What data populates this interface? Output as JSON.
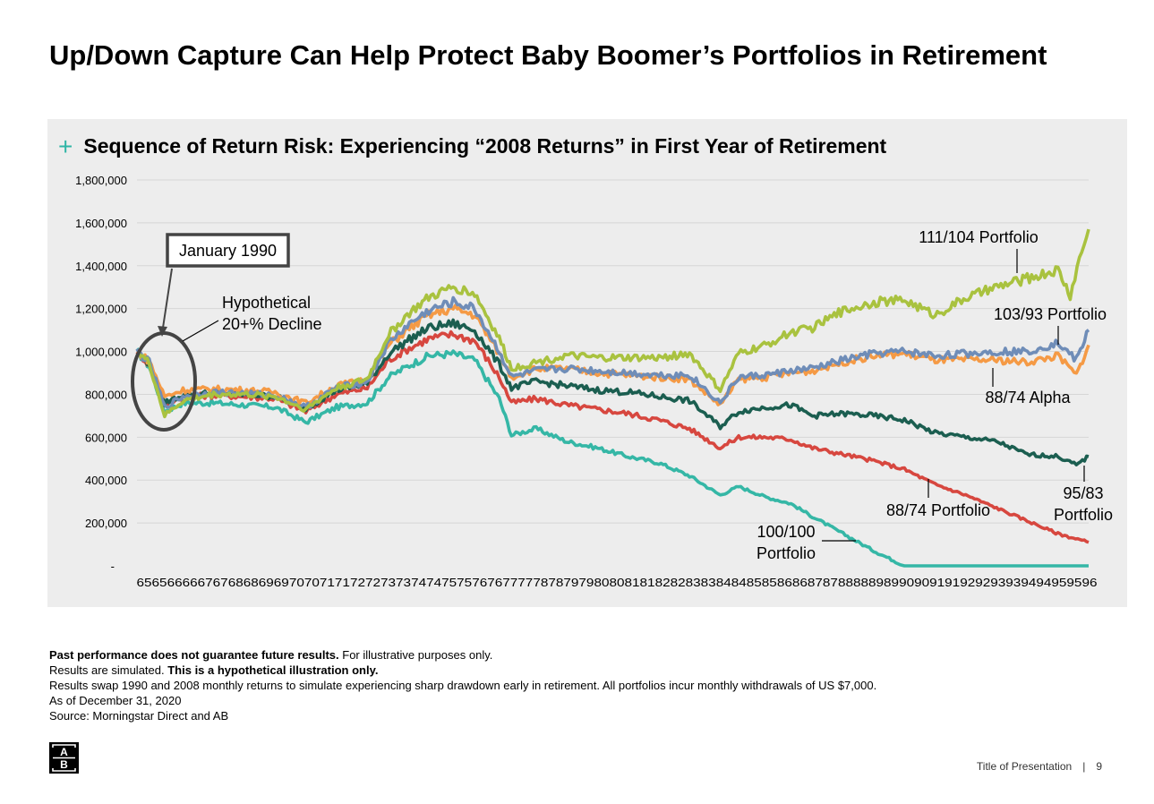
{
  "page": {
    "title": "Up/Down Capture Can Help Protect Baby Boomer’s Portfolios in Retirement",
    "footer_title": "Title of Presentation",
    "footer_separator": "|",
    "page_number": "9"
  },
  "footnotes": [
    {
      "bold": "Past performance does not guarantee future results.",
      "text": " For illustrative purposes only."
    },
    {
      "text": "Results are simulated. ",
      "bold": "This is a hypothetical illustration only."
    },
    {
      "text": "Results swap 1990 and 2008 monthly returns to simulate experiencing sharp drawdown early in retirement. All portfolios incur monthly withdrawals of US $7,000."
    },
    {
      "text": "As of December 31, 2020"
    },
    {
      "text": "Source: Morningstar Direct and AB"
    }
  ],
  "logo": {
    "letters": [
      "A",
      "B"
    ],
    "icon": "ab-logo-icon"
  },
  "colors": {
    "panel_background": "#ededed",
    "accent_plus": "#2fb5a6",
    "gridline": "#d6d6d6"
  },
  "chart_data": {
    "type": "line",
    "title": "Sequence of Return Risk: Experiencing “2008 Returns” in First Year of Retirement",
    "title_marker": "+",
    "xlabel": "",
    "ylabel": "",
    "ylim": [
      0,
      1800000
    ],
    "xlim": [
      1965,
      1996
    ],
    "y_ticks": [
      {
        "value": 0,
        "label": "-"
      },
      {
        "value": 200000,
        "label": "200,000"
      },
      {
        "value": 400000,
        "label": "400,000"
      },
      {
        "value": 600000,
        "label": "600,000"
      },
      {
        "value": 800000,
        "label": "800,000"
      },
      {
        "value": 1000000,
        "label": "1,000,000"
      },
      {
        "value": 1200000,
        "label": "1,200,000"
      },
      {
        "value": 1400000,
        "label": "1,400,000"
      },
      {
        "value": 1600000,
        "label": "1,600,000"
      },
      {
        "value": 1800000,
        "label": "1,800,000"
      }
    ],
    "x_tick_labels_text": "6565666667676868696970707171727273737474757576767777787879798080818182828383848485858686878788888989909091919292939394949595 96",
    "x_tick_labels": [
      "65",
      "65",
      "66",
      "66",
      "67",
      "67",
      "68",
      "68",
      "69",
      "69",
      "70",
      "70",
      "71",
      "71",
      "72",
      "72",
      "73",
      "73",
      "74",
      "74",
      "75",
      "75",
      "76",
      "76",
      "77",
      "77",
      "78",
      "78",
      "79",
      "79",
      "80",
      "80",
      "81",
      "81",
      "82",
      "82",
      "83",
      "83",
      "84",
      "84",
      "85",
      "85",
      "86",
      "86",
      "87",
      "87",
      "88",
      "88",
      "89",
      "89",
      "90",
      "90",
      "91",
      "91",
      "92",
      "92",
      "93",
      "93",
      "94",
      "94",
      "95",
      "95",
      "96"
    ],
    "grid": true,
    "legend": "none",
    "series": [
      {
        "name": "100/100 Portfolio",
        "color": "#35b7a6",
        "x": [
          1965,
          1965.4,
          1965.9,
          1966.5,
          1967.5,
          1968.5,
          1969.5,
          1970.5,
          1971.5,
          1972.5,
          1973.2,
          1973.8,
          1974.5,
          1975.3,
          1976.0,
          1976.8,
          1977.2,
          1978.0,
          1979.0,
          1980.0,
          1981.0,
          1982.0,
          1983.0,
          1984.0,
          1984.6,
          1985.5,
          1986.3,
          1987.0,
          1988.0,
          1989.0,
          1990.0,
          1991.0,
          1992.0,
          1993.0,
          1994.0,
          1995.0,
          1996.0
        ],
        "values": [
          1000000,
          930000,
          720000,
          760000,
          760000,
          750000,
          740000,
          670000,
          740000,
          760000,
          880000,
          930000,
          980000,
          990000,
          960000,
          780000,
          610000,
          640000,
          580000,
          550000,
          510000,
          480000,
          420000,
          330000,
          370000,
          320000,
          290000,
          230000,
          150000,
          70000,
          0,
          0,
          0,
          0,
          0,
          0,
          0
        ]
      },
      {
        "name": "88/74 Portfolio",
        "color": "#d7473f",
        "x": [
          1965,
          1965.4,
          1965.9,
          1966.5,
          1967.5,
          1968.5,
          1969.5,
          1970.5,
          1971.5,
          1972.5,
          1973.2,
          1973.8,
          1974.5,
          1975.3,
          1976.0,
          1976.8,
          1977.2,
          1978.0,
          1979.0,
          1980.0,
          1981.0,
          1982.0,
          1983.0,
          1984.0,
          1984.6,
          1985.5,
          1986.3,
          1987.0,
          1988.0,
          1989.0,
          1990.0,
          1991.0,
          1992.0,
          1993.0,
          1994.0,
          1995.0,
          1996.0
        ],
        "values": [
          1000000,
          940000,
          750000,
          790000,
          795000,
          790000,
          780000,
          720000,
          800000,
          830000,
          960000,
          1010000,
          1060000,
          1080000,
          1050000,
          880000,
          760000,
          780000,
          750000,
          730000,
          710000,
          680000,
          640000,
          550000,
          600000,
          600000,
          590000,
          550000,
          520000,
          490000,
          450000,
          380000,
          330000,
          270000,
          210000,
          150000,
          110000
        ]
      },
      {
        "name": "95/83 Portfolio",
        "color": "#1b5e50",
        "x": [
          1965,
          1965.4,
          1965.9,
          1966.5,
          1967.5,
          1968.5,
          1969.5,
          1970.5,
          1971.5,
          1972.5,
          1973.2,
          1973.8,
          1974.5,
          1975.3,
          1976.0,
          1976.8,
          1977.2,
          1978.0,
          1979.0,
          1980.0,
          1981.0,
          1982.0,
          1983.0,
          1984.0,
          1984.6,
          1985.5,
          1986.3,
          1987.0,
          1988.0,
          1989.0,
          1990.0,
          1991.0,
          1992.0,
          1993.0,
          1994.0,
          1995.0,
          1995.6,
          1996.0
        ],
        "values": [
          1000000,
          945000,
          760000,
          800000,
          805000,
          800000,
          790000,
          735000,
          820000,
          850000,
          990000,
          1050000,
          1110000,
          1130000,
          1100000,
          940000,
          830000,
          860000,
          840000,
          820000,
          810000,
          790000,
          770000,
          650000,
          720000,
          740000,
          750000,
          700000,
          710000,
          700000,
          680000,
          620000,
          600000,
          580000,
          520000,
          510000,
          470000,
          510000
        ]
      },
      {
        "name": "88/74 Alpha",
        "color": "#f59a45",
        "x": [
          1965,
          1965.4,
          1965.9,
          1966.5,
          1967.5,
          1968.5,
          1969.5,
          1970.5,
          1971.5,
          1972.5,
          1973.2,
          1973.8,
          1974.5,
          1975.3,
          1976.0,
          1976.8,
          1977.2,
          1978.0,
          1979.0,
          1980.0,
          1981.0,
          1982.0,
          1983.0,
          1984.0,
          1984.6,
          1985.5,
          1986.3,
          1987.0,
          1988.0,
          1989.0,
          1990.0,
          1991.0,
          1992.0,
          1993.0,
          1994.0,
          1995.0,
          1995.6,
          1996.0
        ],
        "values": [
          1000000,
          955000,
          790000,
          820000,
          825000,
          820000,
          810000,
          760000,
          840000,
          870000,
          1030000,
          1100000,
          1170000,
          1200000,
          1170000,
          990000,
          880000,
          920000,
          920000,
          900000,
          890000,
          880000,
          870000,
          750000,
          870000,
          880000,
          900000,
          910000,
          950000,
          980000,
          990000,
          960000,
          960000,
          960000,
          950000,
          980000,
          890000,
          1030000
        ]
      },
      {
        "name": "103/93 Portfolio",
        "color": "#6f8db8",
        "x": [
          1965,
          1965.4,
          1965.9,
          1966.5,
          1967.5,
          1968.5,
          1969.5,
          1970.5,
          1971.5,
          1972.5,
          1973.2,
          1973.8,
          1974.5,
          1975.3,
          1976.0,
          1976.8,
          1977.2,
          1978.0,
          1979.0,
          1980.0,
          1981.0,
          1982.0,
          1983.0,
          1984.0,
          1984.6,
          1985.5,
          1986.3,
          1987.0,
          1988.0,
          1989.0,
          1990.0,
          1991.0,
          1992.0,
          1993.0,
          1994.0,
          1995.0,
          1995.6,
          1996.0
        ],
        "values": [
          1000000,
          950000,
          740000,
          790000,
          810000,
          805000,
          795000,
          740000,
          830000,
          860000,
          1040000,
          1120000,
          1190000,
          1230000,
          1200000,
          1000000,
          880000,
          910000,
          920000,
          910000,
          900000,
          890000,
          890000,
          760000,
          880000,
          890000,
          910000,
          920000,
          960000,
          990000,
          1000000,
          980000,
          990000,
          1000000,
          1000000,
          1040000,
          960000,
          1100000
        ]
      },
      {
        "name": "111/104 Portfolio",
        "color": "#a9c23f",
        "x": [
          1965,
          1965.4,
          1965.9,
          1966.5,
          1967.5,
          1968.5,
          1969.5,
          1970.5,
          1971.5,
          1972.5,
          1973.2,
          1973.8,
          1974.5,
          1975.3,
          1976.0,
          1976.8,
          1977.2,
          1978.0,
          1979.0,
          1980.0,
          1981.0,
          1982.0,
          1983.0,
          1984.0,
          1984.6,
          1985.5,
          1986.3,
          1987.0,
          1988.0,
          1989.0,
          1990.0,
          1991.0,
          1992.0,
          1993.0,
          1994.0,
          1995.0,
          1995.4,
          1995.7,
          1996.0
        ],
        "values": [
          1000000,
          945000,
          700000,
          770000,
          800000,
          800000,
          790000,
          730000,
          830000,
          870000,
          1080000,
          1170000,
          1250000,
          1300000,
          1270000,
          1060000,
          920000,
          950000,
          980000,
          970000,
          970000,
          970000,
          990000,
          820000,
          990000,
          1030000,
          1090000,
          1110000,
          1190000,
          1230000,
          1240000,
          1170000,
          1250000,
          1300000,
          1340000,
          1380000,
          1260000,
          1430000,
          1570000
        ]
      }
    ],
    "annotations": [
      {
        "id": "january-1990",
        "text": "January 1990"
      },
      {
        "id": "hypothetical-decline",
        "lines": [
          "Hypothetical",
          "20+% Decline"
        ]
      },
      {
        "id": "label-111-104",
        "text": "111/104 Portfolio"
      },
      {
        "id": "label-103-93",
        "text": "103/93 Portfolio"
      },
      {
        "id": "label-88-74-alpha",
        "text": "88/74 Alpha"
      },
      {
        "id": "label-95-83",
        "lines": [
          "95/83",
          "Portfolio"
        ]
      },
      {
        "id": "label-88-74",
        "text": "88/74 Portfolio"
      },
      {
        "id": "label-100-100",
        "lines": [
          "100/100",
          "Portfolio"
        ]
      }
    ]
  }
}
